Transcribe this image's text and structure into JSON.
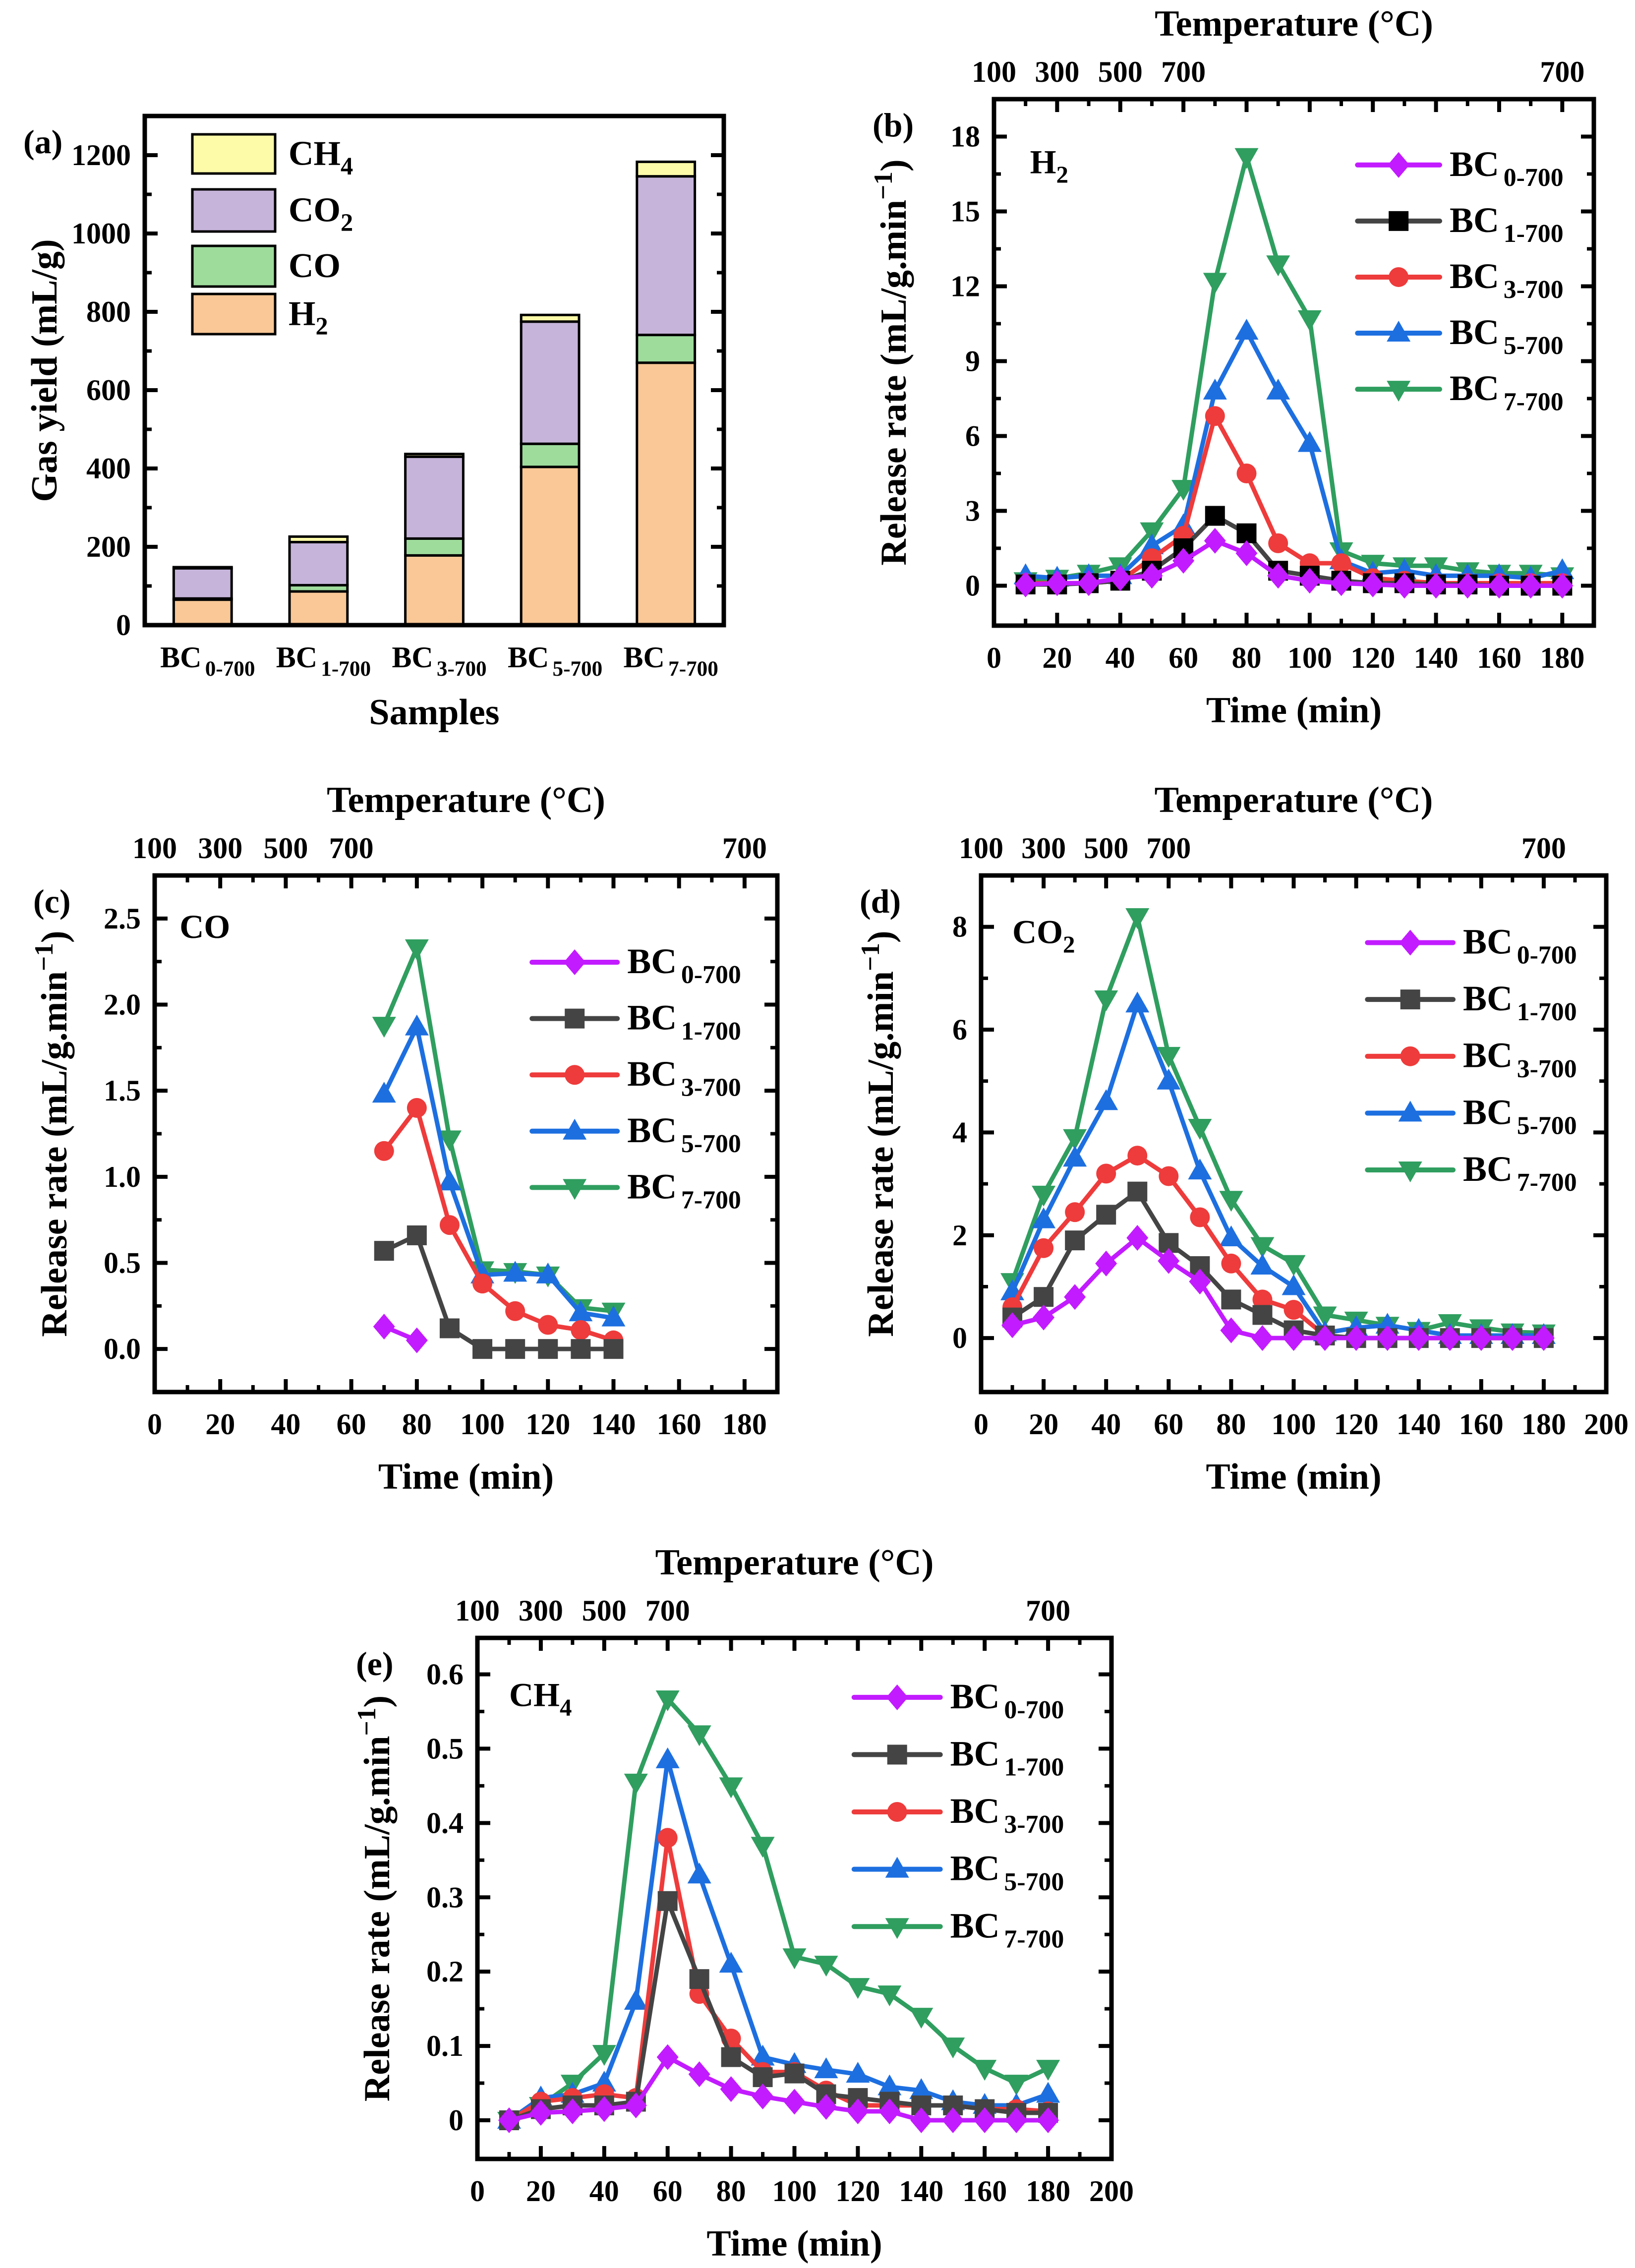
{
  "chart_data": [
    {
      "panel": "(a)",
      "type": "bar",
      "stacked": true,
      "ylabel": "Gas yield (mL/g)",
      "xlabel": "Samples",
      "ylim": [
        0,
        1300
      ],
      "yticks": [
        0,
        200,
        400,
        600,
        800,
        1000,
        1200
      ],
      "ytick_labels": [
        "0",
        "200",
        "400",
        "600",
        "800",
        "1000",
        "1200"
      ],
      "categories": [
        {
          "base": "BC",
          "sub": "0-700"
        },
        {
          "base": "BC",
          "sub": "1-700"
        },
        {
          "base": "BC",
          "sub": "3-700"
        },
        {
          "base": "BC",
          "sub": "5-700"
        },
        {
          "base": "BC",
          "sub": "7-700"
        }
      ],
      "series": [
        {
          "name": "H",
          "sub": "2",
          "color": "#f9c896",
          "values": [
            65,
            86,
            178,
            404,
            670
          ]
        },
        {
          "name": "CO",
          "sub": "",
          "color": "#9edc9c",
          "values": [
            3,
            16,
            43,
            59,
            71
          ]
        },
        {
          "name": "CO",
          "sub": "2",
          "color": "#c6b4da",
          "values": [
            77,
            110,
            209,
            312,
            405
          ]
        },
        {
          "name": "CH",
          "sub": "4",
          "color": "#fdfba8",
          "values": [
            3,
            14,
            7,
            17,
            37
          ]
        }
      ],
      "legend": "top-left",
      "grid": false
    },
    {
      "panel": "(b)",
      "type": "line",
      "gas": {
        "name": "H",
        "sub": "2"
      },
      "top_title": "Temperature (°C)",
      "top_ticks": [
        0,
        20,
        40,
        60,
        180
      ],
      "top_tick_labels": [
        "100",
        "300",
        "500",
        "700",
        "700"
      ],
      "xlabel": "Time (min)",
      "ylabel": {
        "text": "Release rate (mL/g.min",
        "sup": "−1",
        "close": ")"
      },
      "xlim": [
        0,
        190
      ],
      "ylim": [
        -1.6,
        19.5
      ],
      "xticks": [
        0,
        20,
        40,
        60,
        80,
        100,
        120,
        140,
        160,
        180
      ],
      "xtick_labels": [
        "0",
        "20",
        "40",
        "60",
        "80",
        "100",
        "120",
        "140",
        "160",
        "180"
      ],
      "yticks": [
        0,
        3,
        6,
        9,
        12,
        15,
        18
      ],
      "ytick_labels": [
        "0",
        "3",
        "6",
        "9",
        "12",
        "15",
        "18"
      ],
      "x": [
        10,
        20,
        30,
        40,
        50,
        60,
        70,
        80,
        90,
        100,
        110,
        120,
        130,
        140,
        150,
        160,
        170,
        180
      ],
      "series": [
        {
          "name": "BC",
          "sub": "0-700",
          "color": "#c21bff",
          "marker": "diamond",
          "values": [
            0.05,
            0.1,
            0.1,
            0.3,
            0.4,
            1.0,
            1.8,
            1.3,
            0.4,
            0.2,
            0.1,
            0.05,
            0,
            0,
            0,
            0,
            0,
            0
          ]
        },
        {
          "name": "BC",
          "sub": "1-700",
          "color": "#000000",
          "line_color": "#444444",
          "marker": "square",
          "values": [
            0.05,
            0.05,
            0.1,
            0.2,
            0.6,
            1.5,
            2.8,
            2.1,
            0.6,
            0.4,
            0.2,
            0.1,
            0.1,
            0.05,
            0.05,
            0,
            0,
            0
          ]
        },
        {
          "name": "BC",
          "sub": "3-700",
          "color": "#ee3b3b",
          "marker": "circle",
          "values": [
            0.1,
            0.1,
            0.1,
            0.2,
            1.1,
            2.0,
            6.8,
            4.5,
            1.7,
            0.9,
            0.9,
            0.3,
            0.2,
            0.1,
            0.1,
            0.1,
            0.1,
            0.1
          ]
        },
        {
          "name": "BC",
          "sub": "5-700",
          "color": "#1d6fe0",
          "marker": "triangle-up",
          "values": [
            0.4,
            0.3,
            0.4,
            0.4,
            1.6,
            2.4,
            7.8,
            10.2,
            7.8,
            5.7,
            1.0,
            0.5,
            0.6,
            0.4,
            0.4,
            0.4,
            0.3,
            0.6
          ]
        },
        {
          "name": "BC",
          "sub": "7-700",
          "color": "#2f9e5f",
          "marker": "triangle-down",
          "values": [
            0.2,
            0.3,
            0.5,
            0.8,
            2.2,
            3.9,
            12.2,
            17.2,
            12.9,
            10.7,
            1.4,
            0.9,
            0.8,
            0.8,
            0.6,
            0.5,
            0.5,
            0.4
          ]
        }
      ],
      "legend": "top-right",
      "grid": false
    },
    {
      "panel": "(c)",
      "type": "line",
      "gas": {
        "name": "CO",
        "sub": ""
      },
      "top_title": "Temperature (°C)",
      "top_ticks": [
        0,
        20,
        40,
        60,
        180
      ],
      "top_tick_labels": [
        "100",
        "300",
        "500",
        "700",
        "700"
      ],
      "xlabel": "Time (min)",
      "ylabel": {
        "text": "Release rate (mL/g.min",
        "sup": "−1",
        "close": ")"
      },
      "xlim": [
        0,
        190
      ],
      "ylim": [
        -0.25,
        2.75
      ],
      "xticks": [
        0,
        20,
        40,
        60,
        80,
        100,
        120,
        140,
        160,
        180
      ],
      "xtick_labels": [
        "0",
        "20",
        "40",
        "60",
        "80",
        "100",
        "120",
        "140",
        "160",
        "180"
      ],
      "yticks": [
        0,
        0.5,
        1.0,
        1.5,
        2.0,
        2.5
      ],
      "ytick_labels": [
        "0.0",
        "0.5",
        "1.0",
        "1.5",
        "2.0",
        "2.5"
      ],
      "x": [
        70,
        80,
        90,
        100,
        110,
        120,
        130,
        140
      ],
      "series": [
        {
          "name": "BC",
          "sub": "0-700",
          "color": "#c21bff",
          "marker": "diamond",
          "values": [
            0.13,
            0.05,
            null,
            null,
            null,
            null,
            null,
            null
          ]
        },
        {
          "name": "BC",
          "sub": "1-700",
          "color": "#444444",
          "marker": "square",
          "values": [
            0.57,
            0.66,
            0.12,
            0,
            0,
            0,
            0,
            0
          ]
        },
        {
          "name": "BC",
          "sub": "3-700",
          "color": "#ee3b3b",
          "marker": "circle",
          "values": [
            1.15,
            1.4,
            0.72,
            0.38,
            0.22,
            0.14,
            0.11,
            0.05
          ]
        },
        {
          "name": "BC",
          "sub": "5-700",
          "color": "#1d6fe0",
          "marker": "triangle-up",
          "values": [
            1.48,
            1.87,
            0.97,
            0.43,
            0.44,
            0.43,
            0.21,
            0.18
          ]
        },
        {
          "name": "BC",
          "sub": "7-700",
          "color": "#2f9e5f",
          "marker": "triangle-down",
          "values": [
            1.88,
            2.33,
            1.22,
            0.46,
            0.45,
            0.43,
            0.24,
            0.22
          ]
        }
      ],
      "legend": "top-right",
      "grid": false
    },
    {
      "panel": "(d)",
      "type": "line",
      "gas": {
        "name": "CO",
        "sub": "2"
      },
      "top_title": "Temperature (°C)",
      "top_ticks": [
        0,
        20,
        40,
        60,
        180
      ],
      "top_tick_labels": [
        "100",
        "300",
        "500",
        "700",
        "700"
      ],
      "xlabel": "Time (min)",
      "ylabel": {
        "text": "Release rate (mL/g.min",
        "sup": "−1",
        "close": ")"
      },
      "xlim": [
        0,
        200
      ],
      "ylim": [
        -1.05,
        9.0
      ],
      "xticks": [
        0,
        20,
        40,
        60,
        80,
        100,
        120,
        140,
        160,
        180,
        200
      ],
      "xtick_labels": [
        "0",
        "20",
        "40",
        "60",
        "80",
        "100",
        "120",
        "140",
        "160",
        "180",
        "200"
      ],
      "yticks": [
        0,
        2,
        4,
        6,
        8
      ],
      "ytick_labels": [
        "0",
        "2",
        "4",
        "6",
        "8"
      ],
      "x": [
        10,
        20,
        30,
        40,
        50,
        60,
        70,
        80,
        90,
        100,
        110,
        120,
        130,
        140,
        150,
        160,
        170,
        180
      ],
      "series": [
        {
          "name": "BC",
          "sub": "0-700",
          "color": "#c21bff",
          "marker": "diamond",
          "values": [
            0.25,
            0.4,
            0.8,
            1.45,
            1.95,
            1.5,
            1.1,
            0.15,
            0,
            0,
            0,
            0,
            0,
            0,
            0,
            0,
            0,
            0
          ]
        },
        {
          "name": "BC",
          "sub": "1-700",
          "color": "#444444",
          "marker": "square",
          "values": [
            0.4,
            0.8,
            1.9,
            2.4,
            2.85,
            1.85,
            1.4,
            0.75,
            0.45,
            0.15,
            0.05,
            0,
            0,
            0,
            0,
            0,
            0,
            0
          ]
        },
        {
          "name": "BC",
          "sub": "3-700",
          "color": "#ee3b3b",
          "marker": "circle",
          "values": [
            0.6,
            1.75,
            2.45,
            3.2,
            3.55,
            3.15,
            2.35,
            1.45,
            0.75,
            0.55,
            0.05,
            0,
            0,
            0,
            0,
            0,
            0,
            0
          ]
        },
        {
          "name": "BC",
          "sub": "5-700",
          "color": "#1d6fe0",
          "marker": "triangle-up",
          "values": [
            0.9,
            2.3,
            3.5,
            4.6,
            6.5,
            5.0,
            3.25,
            1.95,
            1.4,
            1.0,
            0.1,
            0.2,
            0.25,
            0.15,
            0.05,
            0.05,
            0.05,
            0.05
          ]
        },
        {
          "name": "BC",
          "sub": "7-700",
          "color": "#2f9e5f",
          "marker": "triangle-down",
          "values": [
            1.1,
            2.8,
            3.9,
            6.6,
            8.2,
            5.5,
            4.1,
            2.7,
            1.8,
            1.45,
            0.45,
            0.35,
            0.25,
            0.15,
            0.3,
            0.2,
            0.12,
            0.1
          ]
        }
      ],
      "legend": "top-right",
      "grid": false
    },
    {
      "panel": "(e)",
      "type": "line",
      "gas": {
        "name": "CH",
        "sub": "4"
      },
      "top_title": "Temperature (°C)",
      "top_ticks": [
        0,
        20,
        40,
        60,
        180
      ],
      "top_tick_labels": [
        "100",
        "300",
        "500",
        "700",
        "700"
      ],
      "xlabel": "Time (min)",
      "ylabel": {
        "text": "Release rate (mL/g.min",
        "sup": "−1",
        "close": ")"
      },
      "xlim": [
        0,
        200
      ],
      "ylim": [
        -0.052,
        0.649
      ],
      "xticks": [
        0,
        20,
        40,
        60,
        80,
        100,
        120,
        140,
        160,
        180,
        200
      ],
      "xtick_labels": [
        "0",
        "20",
        "40",
        "60",
        "80",
        "100",
        "120",
        "140",
        "160",
        "180",
        "200"
      ],
      "yticks": [
        0,
        0.1,
        0.2,
        0.3,
        0.4,
        0.5,
        0.6
      ],
      "ytick_labels": [
        "0",
        "0.1",
        "0.2",
        "0.3",
        "0.4",
        "0.5",
        "0.6"
      ],
      "x": [
        10,
        20,
        30,
        40,
        50,
        60,
        70,
        80,
        90,
        100,
        110,
        120,
        130,
        140,
        150,
        160,
        170,
        180
      ],
      "series": [
        {
          "name": "BC",
          "sub": "0-700",
          "color": "#c21bff",
          "marker": "diamond",
          "values": [
            0,
            0.01,
            0.012,
            0.015,
            0.02,
            0.085,
            0.062,
            0.042,
            0.032,
            0.025,
            0.018,
            0.012,
            0.012,
            0,
            0,
            0,
            0,
            0
          ]
        },
        {
          "name": "BC",
          "sub": "1-700",
          "color": "#444444",
          "marker": "square",
          "values": [
            0,
            0.015,
            0.02,
            0.02,
            0.025,
            0.295,
            0.19,
            0.085,
            0.058,
            0.063,
            0.035,
            0.03,
            0.025,
            0.02,
            0.02,
            0.015,
            0.01,
            0.01
          ]
        },
        {
          "name": "BC",
          "sub": "3-700",
          "color": "#ee3b3b",
          "marker": "circle",
          "values": [
            0,
            0.025,
            0.03,
            0.035,
            0.03,
            0.38,
            0.17,
            0.11,
            0.065,
            0.065,
            0.04,
            0.02,
            0.02,
            0.02,
            0.02,
            0.015,
            0.015,
            0.012
          ]
        },
        {
          "name": "BC",
          "sub": "5-700",
          "color": "#1d6fe0",
          "marker": "triangle-up",
          "values": [
            0,
            0.03,
            0.035,
            0.05,
            0.16,
            0.485,
            0.33,
            0.21,
            0.085,
            0.075,
            0.068,
            0.062,
            0.045,
            0.04,
            0.025,
            0.02,
            0.02,
            0.035
          ]
        },
        {
          "name": "BC",
          "sub": "7-700",
          "color": "#2f9e5f",
          "marker": "triangle-down",
          "values": [
            0,
            0.02,
            0.05,
            0.09,
            0.455,
            0.567,
            0.52,
            0.45,
            0.37,
            0.22,
            0.21,
            0.18,
            0.17,
            0.14,
            0.1,
            0.07,
            0.05,
            0.07
          ]
        }
      ],
      "legend": "top-right",
      "grid": false
    }
  ]
}
